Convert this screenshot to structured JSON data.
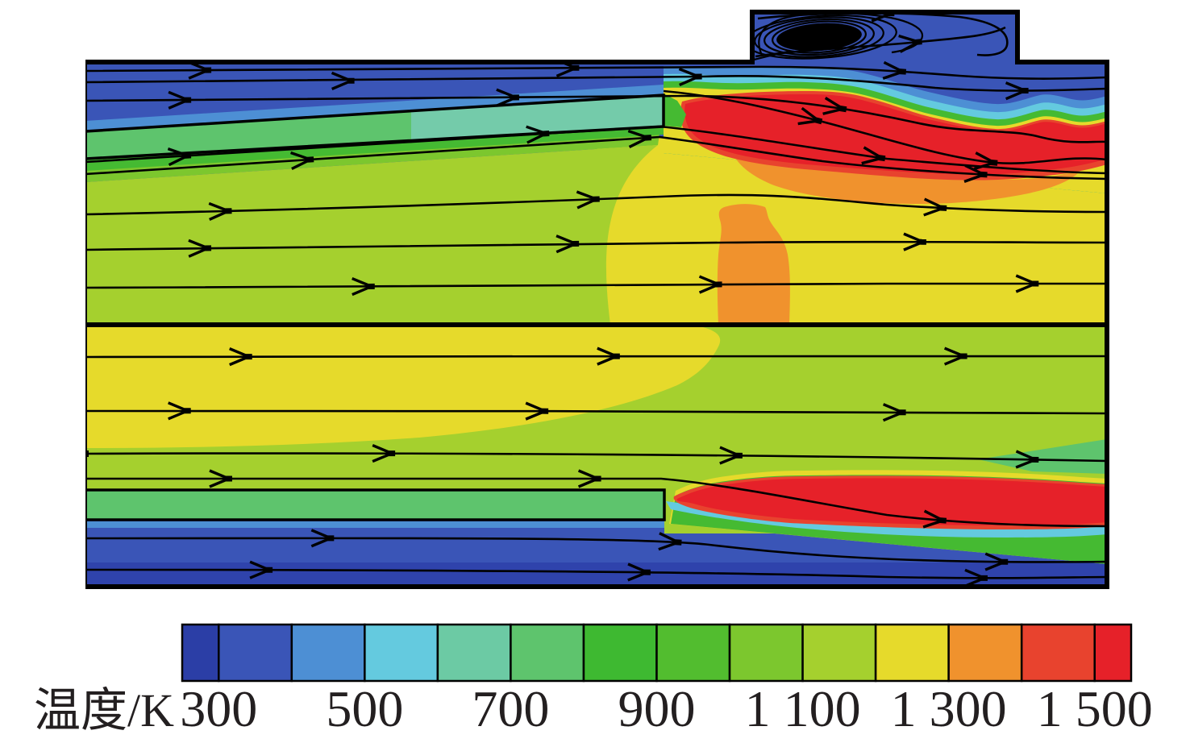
{
  "figure": {
    "description": "CFD temperature contour plot with streamlines, two splitter plates with flame zones, and a top cavity recirculation vortex",
    "background_color": "#ffffff",
    "outline_color": "#000000"
  },
  "chart_data": {
    "type": "heatmap",
    "title": "",
    "colorbar": {
      "label": "温度/K",
      "unit": "K",
      "orientation": "horizontal",
      "position": "bottom",
      "tick_labels": [
        "300",
        "500",
        "700",
        "900",
        "1 100",
        "1 300",
        "1 500"
      ],
      "tick_values": [
        300,
        500,
        700,
        900,
        1100,
        1300,
        1500
      ],
      "value_range": [
        250,
        1550
      ],
      "level_step": 100,
      "segment_colors": [
        "#2b3ea6",
        "#3a55b7",
        "#4d8fd4",
        "#64cadf",
        "#6ccaa4",
        "#5ec46d",
        "#3eb931",
        "#52bd2f",
        "#7cc72e",
        "#a5d02e",
        "#e6da2b",
        "#f0922d",
        "#e8432e",
        "#e62129"
      ]
    },
    "flow_features": {
      "flow_direction": "left-to-right",
      "streamline_color": "#000000",
      "regions": [
        {
          "name": "upper-inlet-cold-stream",
          "approx_temp_K": 450,
          "color": "#3a55b7"
        },
        {
          "name": "cavity-recirculation-vortex",
          "approx_temp_K": 450,
          "color": "#3a55b7"
        },
        {
          "name": "upper-splitter-plate",
          "approx_temp_K": 700,
          "color": "#74cbaa"
        },
        {
          "name": "upper-core-flow",
          "approx_temp_K": 1150,
          "color": "#a5d02e"
        },
        {
          "name": "upper-flame-zone",
          "approx_temp_K": 1500,
          "color": "#e62129"
        },
        {
          "name": "downstream-hot-core",
          "approx_temp_K": 1250,
          "color": "#e6da2b"
        },
        {
          "name": "hot-spot-plume",
          "approx_temp_K": 1350,
          "color": "#f0922d"
        },
        {
          "name": "lower-core-flow",
          "approx_temp_K": 1250,
          "color": "#e6da2b"
        },
        {
          "name": "lower-splitter-plate",
          "approx_temp_K": 750,
          "color": "#5ec46d"
        },
        {
          "name": "lower-flame-zone",
          "approx_temp_K": 1500,
          "color": "#e62129"
        },
        {
          "name": "lower-inlet-cold-stream",
          "approx_temp_K": 450,
          "color": "#3a55b7"
        }
      ]
    }
  }
}
